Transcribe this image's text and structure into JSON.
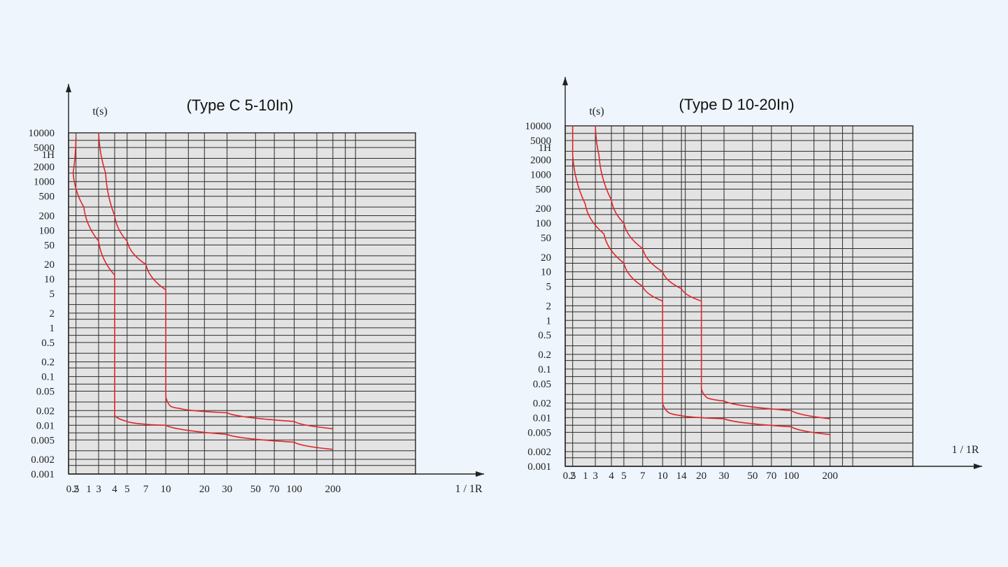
{
  "chart_data": [
    {
      "type": "line",
      "title": "(Type C 5-10In)",
      "ylabel": "t(s)",
      "xlabel": "1 / 1R",
      "y_tick_labels": [
        "10000",
        "5000",
        "1H",
        "2000",
        "1000",
        "500",
        "200",
        "100",
        "50",
        "20",
        "10",
        "5",
        "2",
        "1",
        "0.5",
        "0.2",
        "0.1",
        "0.05",
        "0.02",
        "0.01",
        "0.005",
        "0.002",
        "0.001"
      ],
      "x_tick_labels": [
        "0.5",
        "1",
        "2",
        "3",
        "4",
        "5",
        "7",
        "10",
        "20",
        "30",
        "50",
        "70",
        "100",
        "200"
      ],
      "series": [
        {
          "curve": "lower",
          "points": [
            [
              2,
              8000
            ],
            [
              1.9,
              1500
            ],
            [
              2.3,
              300
            ],
            [
              3,
              60
            ],
            [
              4,
              12
            ],
            [
              4,
              0.016
            ],
            [
              5,
              0.012
            ],
            [
              7,
              0.0105
            ],
            [
              10,
              0.01
            ],
            [
              30,
              0.0065
            ],
            [
              100,
              0.0045
            ],
            [
              200,
              0.0032
            ]
          ]
        },
        {
          "curve": "upper",
          "points": [
            [
              3,
              10000
            ],
            [
              3.4,
              1500
            ],
            [
              4,
              200
            ],
            [
              5,
              60
            ],
            [
              7,
              20
            ],
            [
              10,
              6
            ],
            [
              10,
              0.04
            ],
            [
              10.8,
              0.025
            ],
            [
              13,
              0.022
            ],
            [
              30,
              0.018
            ],
            [
              100,
              0.012
            ],
            [
              200,
              0.0085
            ]
          ]
        }
      ]
    },
    {
      "type": "line",
      "title": "(Type D 10-20In)",
      "ylabel": "t(s)",
      "xlabel": "1 / 1R",
      "y_tick_labels": [
        "10000",
        "5000",
        "1H",
        "2000",
        "1000",
        "500",
        "200",
        "100",
        "50",
        "20",
        "10",
        "5",
        "2",
        "1",
        "0.5",
        "0.2",
        "0.1",
        "0.05",
        "0.02",
        "0.01",
        "0.005",
        "0.002",
        "0.001"
      ],
      "x_tick_labels": [
        "0.5",
        "1",
        "2",
        "3",
        "4",
        "5",
        "7",
        "10",
        "14",
        "20",
        "30",
        "50",
        "70",
        "100",
        "200"
      ],
      "series": [
        {
          "curve": "lower",
          "points": [
            [
              2,
              10000
            ],
            [
              2,
              2500
            ],
            [
              2.5,
              250
            ],
            [
              3.5,
              60
            ],
            [
              5,
              15
            ],
            [
              7,
              5
            ],
            [
              10,
              2.5
            ],
            [
              10,
              0.02
            ],
            [
              11,
              0.013
            ],
            [
              14,
              0.011
            ],
            [
              30,
              0.0095
            ],
            [
              100,
              0.0065
            ],
            [
              200,
              0.0045
            ]
          ]
        },
        {
          "curve": "upper",
          "points": [
            [
              3,
              10000
            ],
            [
              3.2,
              2500
            ],
            [
              4,
              300
            ],
            [
              5,
              100
            ],
            [
              7,
              30
            ],
            [
              10,
              10
            ],
            [
              14,
              4.5
            ],
            [
              20,
              2.5
            ],
            [
              20,
              0.04
            ],
            [
              22,
              0.026
            ],
            [
              30,
              0.022
            ],
            [
              100,
              0.014
            ],
            [
              200,
              0.0095
            ]
          ]
        }
      ]
    }
  ]
}
